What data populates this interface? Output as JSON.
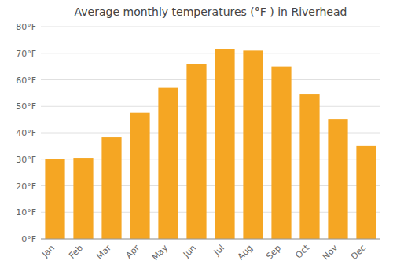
{
  "chart_data": {
    "type": "bar",
    "title": "Average monthly temperatures (°F ) in Riverhead",
    "categories": [
      "Jan",
      "Feb",
      "Mar",
      "Apr",
      "May",
      "Jun",
      "Jul",
      "Aug",
      "Sep",
      "Oct",
      "Nov",
      "Dec"
    ],
    "values": [
      30,
      30.5,
      38.5,
      47.5,
      57,
      66,
      71.5,
      71,
      65,
      54.5,
      45,
      35
    ],
    "color": "#F5A623",
    "ylim": [
      0,
      80
    ],
    "yticks": [
      {
        "value": 0,
        "label": "0°F"
      },
      {
        "value": 10,
        "label": "10°F"
      },
      {
        "value": 20,
        "label": "20°F"
      },
      {
        "value": 30,
        "label": "30°F"
      },
      {
        "value": 40,
        "label": "40°F"
      },
      {
        "value": 50,
        "label": "50°F"
      },
      {
        "value": 60,
        "label": "60°F"
      },
      {
        "value": 70,
        "label": "70°F"
      },
      {
        "value": 80,
        "label": "80°F"
      }
    ],
    "grid": true
  }
}
